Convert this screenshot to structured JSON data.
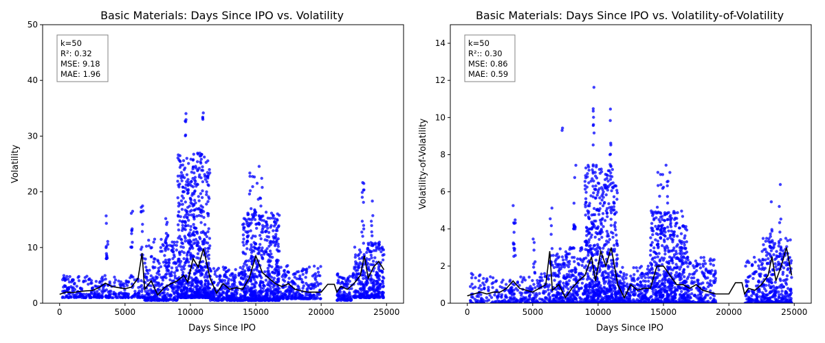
{
  "chart_data": [
    {
      "type": "scatter",
      "title": "Basic Materials: Days Since IPO vs. Volatility",
      "xlabel": "Days Since IPO",
      "ylabel": "Volatility",
      "xlim": [
        -1300,
        26300
      ],
      "ylim": [
        0,
        50
      ],
      "xticks": [
        0,
        5000,
        10000,
        15000,
        20000,
        25000
      ],
      "yticks": [
        0,
        10,
        20,
        30,
        40,
        50
      ],
      "point_color": "#0000ff",
      "line_color": "#000000",
      "stats": [
        "k=50",
        "R²: 0.32",
        "MSE: 9.18",
        "MAE: 1.96"
      ],
      "series": [
        {
          "kind": "scatter",
          "clusters": [
            {
              "x": [
                200,
                6500
              ],
              "base": 1.0,
              "spread": 4.0,
              "n": 320
            },
            {
              "x": [
                3500,
                3700
              ],
              "base": 8,
              "spread": 8,
              "n": 14
            },
            {
              "x": [
                5400,
                5600
              ],
              "base": 10,
              "spread": 7,
              "n": 10
            },
            {
              "x": [
                6200,
                6400
              ],
              "base": 8,
              "spread": 10,
              "n": 12
            },
            {
              "x": [
                6500,
                9000
              ],
              "base": 0.5,
              "spread": 11,
              "n": 300
            },
            {
              "x": [
                8100,
                8300
              ],
              "base": 10,
              "spread": 12,
              "n": 12
            },
            {
              "x": [
                9000,
                11500
              ],
              "base": 1.0,
              "spread": 26,
              "n": 700
            },
            {
              "x": [
                9600,
                9700
              ],
              "base": 30,
              "spread": 7,
              "n": 6
            },
            {
              "x": [
                10900,
                11000
              ],
              "base": 33,
              "spread": 1.5,
              "n": 4
            },
            {
              "x": [
                11500,
                14000
              ],
              "base": 0.5,
              "spread": 6,
              "n": 260
            },
            {
              "x": [
                14000,
                16800
              ],
              "base": 0.5,
              "spread": 16,
              "n": 600
            },
            {
              "x": [
                14500,
                15500
              ],
              "base": 15,
              "spread": 10,
              "n": 30
            },
            {
              "x": [
                16800,
                20000
              ],
              "base": 0.8,
              "spread": 6,
              "n": 240
            },
            {
              "x": [
                21200,
                22500
              ],
              "base": 0.5,
              "spread": 5,
              "n": 110
            },
            {
              "x": [
                22500,
                24800
              ],
              "base": 1.0,
              "spread": 10,
              "n": 320
            },
            {
              "x": [
                23100,
                23300
              ],
              "base": 12,
              "spread": 10,
              "n": 12
            },
            {
              "x": [
                23800,
                24000
              ],
              "base": 10,
              "spread": 10,
              "n": 10
            }
          ]
        },
        {
          "kind": "line",
          "name": "",
          "x": [
            0,
            500,
            1000,
            1500,
            2000,
            2500,
            3000,
            3500,
            4000,
            4500,
            5000,
            5500,
            6000,
            6300,
            6500,
            7000,
            7500,
            8000,
            8500,
            9000,
            9500,
            9800,
            10200,
            10600,
            11000,
            11500,
            12000,
            12500,
            13000,
            13500,
            14000,
            14500,
            15000,
            15500,
            16000,
            16500,
            17000,
            17500,
            18000,
            18500,
            19000,
            19500,
            20000,
            20500,
            21000,
            21200,
            21500,
            22000,
            22500,
            23000,
            23300,
            23600,
            24000,
            24400,
            24800
          ],
          "y": [
            1.6,
            2.0,
            1.9,
            2.1,
            2.2,
            2.3,
            2.8,
            3.6,
            3.0,
            2.8,
            2.6,
            2.9,
            4.5,
            9.0,
            2.5,
            4.0,
            1.5,
            2.8,
            3.5,
            4.0,
            5.0,
            3.8,
            8.0,
            6.5,
            9.8,
            4.5,
            1.8,
            3.5,
            2.5,
            2.8,
            2.5,
            4.5,
            8.5,
            5.5,
            4.5,
            3.5,
            3.0,
            3.5,
            2.5,
            2.2,
            2.0,
            2.0,
            2.0,
            3.4,
            3.4,
            2.0,
            3.0,
            2.5,
            3.5,
            5.0,
            8.5,
            4.5,
            6.5,
            7.5,
            6.0
          ]
        }
      ]
    },
    {
      "type": "scatter",
      "title": "Basic Materials: Days Since IPO vs. Volatility-of-Volatility",
      "xlabel": "Days Since IPO",
      "ylabel": "Volatility-of-Volatility",
      "xlim": [
        -1300,
        26300
      ],
      "ylim": [
        0,
        15
      ],
      "xticks": [
        0,
        5000,
        10000,
        15000,
        20000,
        25000
      ],
      "yticks": [
        0,
        2,
        4,
        6,
        8,
        10,
        12,
        14
      ],
      "point_color": "#0000ff",
      "line_color": "#000000",
      "stats": [
        "k=50",
        "R²:: 0.30",
        "MSE: 0.86",
        "MAE: 0.59"
      ],
      "series": [
        {
          "kind": "scatter",
          "clusters": [
            {
              "x": [
                200,
                6500
              ],
              "base": 0.0,
              "spread": 1.6,
              "n": 320
            },
            {
              "x": [
                3500,
                3700
              ],
              "base": 2.5,
              "spread": 2.8,
              "n": 14
            },
            {
              "x": [
                5000,
                5200
              ],
              "base": 1.5,
              "spread": 2.0,
              "n": 8
            },
            {
              "x": [
                6300,
                6500
              ],
              "base": 2.0,
              "spread": 4.0,
              "n": 12
            },
            {
              "x": [
                6500,
                9000
              ],
              "base": 0.0,
              "spread": 3.0,
              "n": 300
            },
            {
              "x": [
                7200,
                7300
              ],
              "base": 9.3,
              "spread": 0.3,
              "n": 2
            },
            {
              "x": [
                8100,
                8300
              ],
              "base": 4.0,
              "spread": 3.5,
              "n": 12
            },
            {
              "x": [
                9000,
                11500
              ],
              "base": 0.0,
              "spread": 7.5,
              "n": 700
            },
            {
              "x": [
                9600,
                9700
              ],
              "base": 8.5,
              "spread": 3.5,
              "n": 8
            },
            {
              "x": [
                10900,
                11000
              ],
              "base": 8.0,
              "spread": 2.5,
              "n": 6
            },
            {
              "x": [
                11500,
                14000
              ],
              "base": 0.0,
              "spread": 2.0,
              "n": 260
            },
            {
              "x": [
                14000,
                16800
              ],
              "base": 0.0,
              "spread": 5.0,
              "n": 600
            },
            {
              "x": [
                14500,
                15500
              ],
              "base": 4.0,
              "spread": 3.5,
              "n": 30
            },
            {
              "x": [
                16800,
                19000
              ],
              "base": 0.0,
              "spread": 2.5,
              "n": 200
            },
            {
              "x": [
                21200,
                22500
              ],
              "base": 0.0,
              "spread": 2.5,
              "n": 110
            },
            {
              "x": [
                22500,
                24800
              ],
              "base": 0.0,
              "spread": 3.5,
              "n": 320
            },
            {
              "x": [
                23100,
                23300
              ],
              "base": 3.0,
              "spread": 3.5,
              "n": 12
            },
            {
              "x": [
                23800,
                24000
              ],
              "base": 3.0,
              "spread": 3.5,
              "n": 10
            }
          ]
        },
        {
          "kind": "line",
          "name": "",
          "x": [
            0,
            500,
            1000,
            1500,
            2000,
            2500,
            3000,
            3500,
            4000,
            4500,
            5000,
            5500,
            6000,
            6300,
            6500,
            7000,
            7500,
            8000,
            8500,
            9000,
            9500,
            9800,
            10200,
            10600,
            11000,
            11500,
            12000,
            12500,
            13000,
            13500,
            14000,
            14500,
            15000,
            15500,
            16000,
            16500,
            17000,
            17500,
            18000,
            18500,
            19000,
            19500,
            20000,
            20500,
            21000,
            21200,
            21500,
            22000,
            22500,
            23000,
            23300,
            23600,
            24000,
            24400,
            24800
          ],
          "y": [
            0.4,
            0.5,
            0.6,
            0.5,
            0.6,
            0.6,
            0.8,
            1.2,
            0.8,
            0.7,
            0.6,
            0.8,
            1.0,
            2.8,
            0.7,
            1.0,
            0.3,
            0.8,
            1.2,
            1.5,
            2.5,
            1.2,
            2.8,
            2.0,
            3.0,
            1.0,
            0.3,
            1.0,
            0.7,
            0.8,
            0.8,
            2.0,
            2.0,
            1.5,
            1.0,
            1.0,
            0.8,
            1.0,
            0.7,
            0.6,
            0.5,
            0.5,
            0.5,
            1.1,
            1.1,
            0.5,
            0.8,
            0.7,
            1.0,
            1.5,
            2.5,
            1.2,
            2.0,
            3.0,
            1.5
          ]
        }
      ]
    }
  ]
}
